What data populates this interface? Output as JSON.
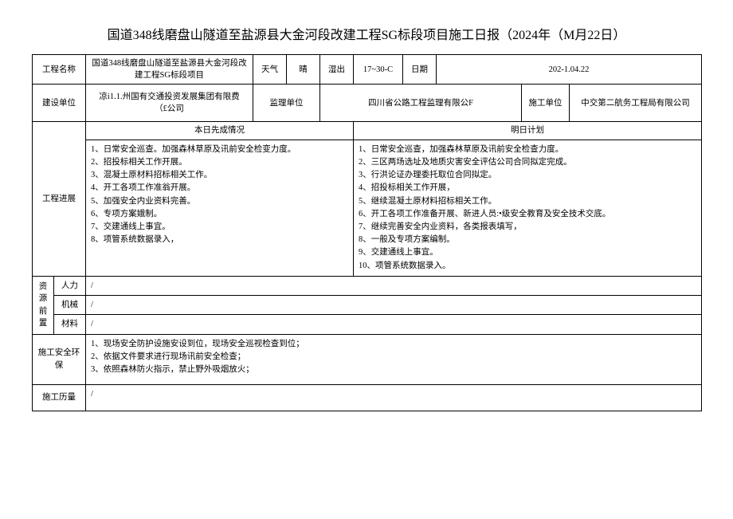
{
  "title": "国道348线磨盘山隧道至盐源县大金河段改建工程SG标段项目施工日报（2024年（M月22日）",
  "row1": {
    "project_name_label": "工程名称",
    "project_name_value": "国道348线磨盘山隧道至盐源县大金河段改建工程SG标段项目",
    "weather_label": "天气",
    "weather_value": "晴",
    "humidity_label": "湿出",
    "humidity_value": "17~30-C",
    "date_label": "日期",
    "date_value": "202-1.04.22"
  },
  "row2": {
    "construction_unit_label": "建设单位",
    "construction_unit_value": "凉i1.1.州国有交通投资发展集团有限费（£公司",
    "supervision_unit_label": "监理单位",
    "supervision_unit_value": "四川省公路工程监理有限公F",
    "builder_label": "施工单位",
    "builder_value": "中交第二航务工程局有限公司"
  },
  "progress": {
    "label": "工程进展",
    "today_header": "本日先成情况",
    "tomorrow_header": "明日计划",
    "today": [
      "1、日常安全巡查。加强森林草原及讯前安全检变力度。",
      "2、招投标相关工作开展。",
      "3、混凝土原材料招标相关工作。",
      "4、开工各项工作准翁开展。",
      "5、加强安全内业资料完善。",
      "6、专项方案娥制。",
      "7、交建通线上事宜。",
      "8、项管系统数据录入，"
    ],
    "tomorrow": [
      "1、日常安全巡查，加强森林草原及讯前安全检查力度。",
      "2、三区两场选址及地质灾害安全评估公司合同拟定完成。",
      "3、行洪论证办理委托取位合同拟定。",
      "4、招投标相关工作开展，",
      "5、继续混凝土原材料招标相关工作。",
      "6、开工各项工作准备开展、新进人员:•级安全教育及安全技术交底。",
      "7、继续完善安全内业资料，各类报表填写，",
      "8、一般及专项方案编制。",
      "9、交建通线上事宜。",
      "10、项管系统数据录入。"
    ]
  },
  "resources": {
    "label": "资源前置",
    "labor_label": "人力",
    "labor_value": "/",
    "machinery_label": "机械",
    "machinery_value": "/",
    "material_label": "材料",
    "material_value": "/"
  },
  "safety": {
    "label": "施工安全环保",
    "items": [
      "1、现场安全防护设施安设到位，现场安全巡视检查到位；",
      "2、依据文件要求进行现场讯前安全检查；",
      "3、依照森林防火指示，禁止野外吸烟放火；"
    ]
  },
  "history": {
    "label": "施工历量",
    "value": "/"
  },
  "style": {
    "border_color": "#000000",
    "background_color": "#ffffff",
    "text_color": "#000000",
    "title_fontsize": 16,
    "body_fontsize": 10.5,
    "font_family": "SimSun"
  }
}
